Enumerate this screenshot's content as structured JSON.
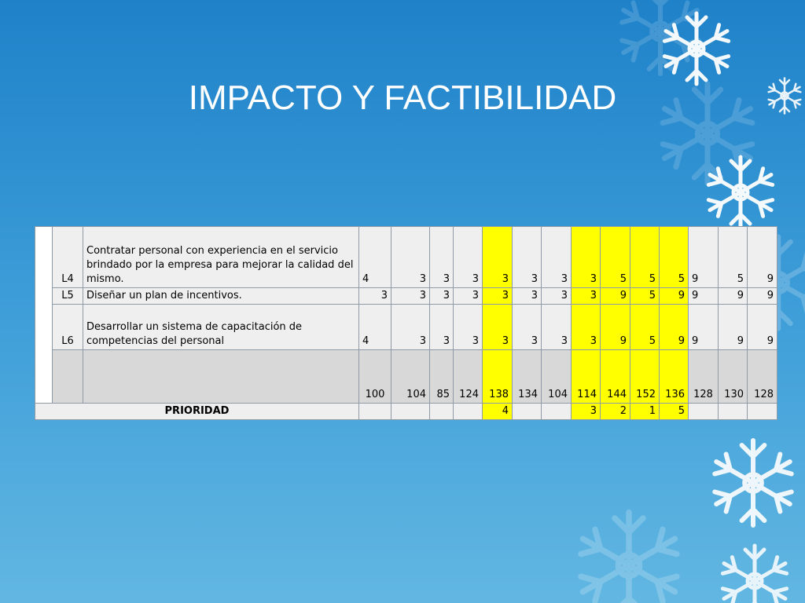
{
  "title": "IMPACTO Y FACTIBILIDAD",
  "table": {
    "rows": [
      {
        "label": "L4",
        "description": "Contratar personal con experiencia en el servicio brindado por la empresa para mejorar la calidad del mismo.",
        "values": [
          4,
          3,
          3,
          3,
          3,
          3,
          3,
          3,
          5,
          5,
          5,
          9,
          5,
          9
        ]
      },
      {
        "label": "L5",
        "description": "Diseñar un plan de incentivos.",
        "values": [
          3,
          3,
          3,
          3,
          3,
          3,
          3,
          3,
          9,
          5,
          9,
          9,
          9,
          9
        ]
      },
      {
        "label": "L6",
        "description": "Desarrollar un sistema de capacitación de competencias del personal",
        "values": [
          4,
          3,
          3,
          3,
          3,
          3,
          3,
          3,
          9,
          5,
          9,
          9,
          9,
          9
        ]
      }
    ],
    "totals": [
      100,
      104,
      85,
      124,
      138,
      134,
      104,
      114,
      144,
      152,
      136,
      128,
      130,
      128
    ],
    "priority": {
      "label": "PRIORIDAD",
      "values": [
        null,
        null,
        null,
        null,
        4,
        null,
        null,
        3,
        2,
        1,
        5,
        null,
        null,
        null
      ]
    },
    "highlight_columns": [
      4,
      7,
      8,
      9,
      10
    ],
    "highlight_color": "#ffff00"
  }
}
